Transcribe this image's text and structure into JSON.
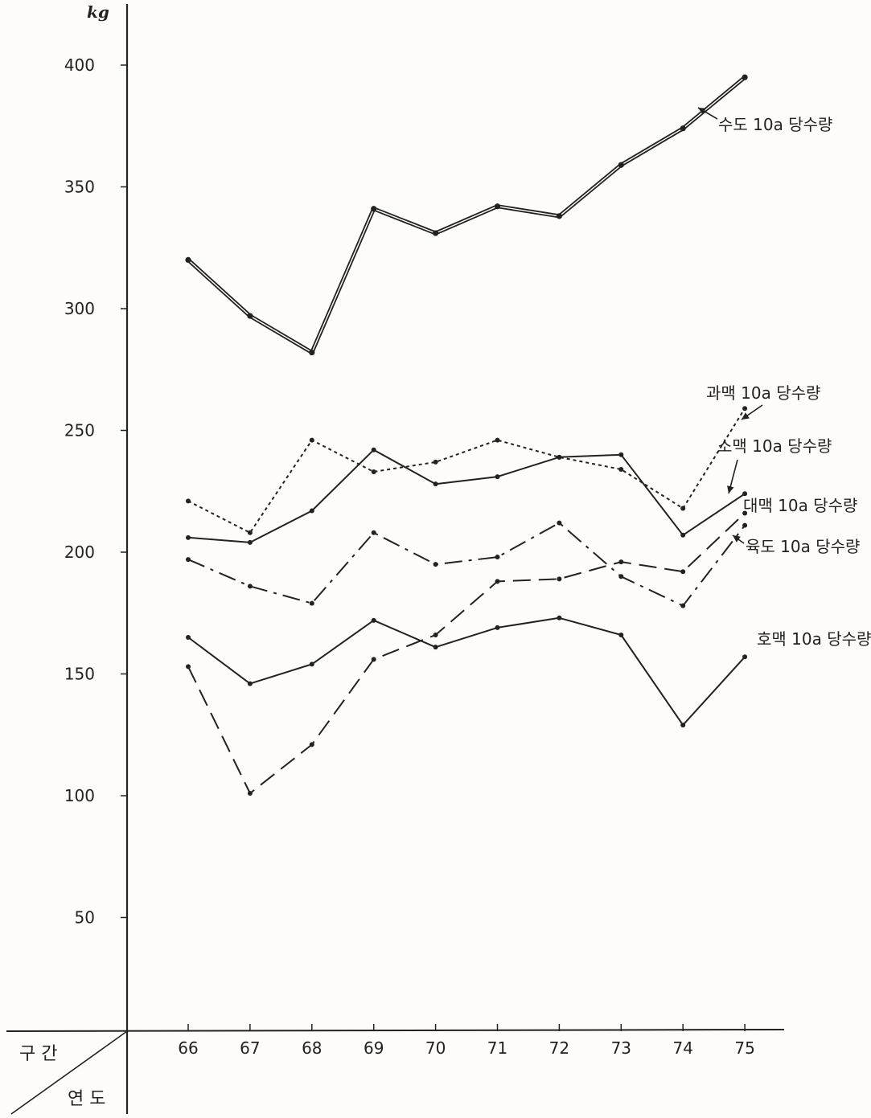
{
  "chart_data": {
    "type": "line",
    "y_unit": "kg",
    "ylim": [
      0,
      420
    ],
    "y_ticks": [
      "50",
      "100",
      "150",
      "200",
      "250",
      "300",
      "350",
      "400"
    ],
    "categories": [
      "66",
      "67",
      "68",
      "69",
      "70",
      "71",
      "72",
      "73",
      "74",
      "75"
    ],
    "corner": {
      "top": "구  간",
      "bottom": "연 도"
    },
    "grid": false,
    "series": [
      {
        "name": "수도 10a 당수량",
        "style": "double",
        "values": [
          320,
          297,
          282,
          341,
          331,
          342,
          338,
          359,
          374,
          395
        ]
      },
      {
        "name": "과맥 10a 당수량",
        "style": "dotted",
        "values": [
          221,
          208,
          246,
          233,
          237,
          246,
          239,
          234,
          218,
          259
        ]
      },
      {
        "name": "소맥 10a 당수량",
        "style": "solid",
        "values": [
          206,
          204,
          217,
          242,
          228,
          231,
          239,
          240,
          207,
          224
        ]
      },
      {
        "name": "대맥 10a 당수량",
        "style": "dashed",
        "values": [
          153,
          101,
          121,
          156,
          166,
          188,
          189,
          196,
          192,
          216
        ]
      },
      {
        "name": "육도 10a 당수량",
        "style": "dashdot",
        "values": [
          197,
          186,
          179,
          208,
          195,
          198,
          212,
          190,
          178,
          211
        ]
      },
      {
        "name": "호맥 10a 당수량",
        "style": "solid",
        "values": [
          165,
          146,
          154,
          172,
          161,
          169,
          173,
          166,
          129,
          157
        ]
      }
    ]
  }
}
